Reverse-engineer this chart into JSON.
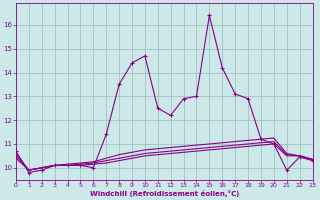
{
  "xlabel": "Windchill (Refroidissement éolien,°C)",
  "bg_color": "#cce8e8",
  "line_color": "#880088",
  "grid_color": "#99bbbb",
  "x": [
    0,
    1,
    2,
    3,
    4,
    5,
    6,
    7,
    8,
    9,
    10,
    11,
    12,
    13,
    14,
    15,
    16,
    17,
    18,
    19,
    20,
    21,
    22,
    23
  ],
  "y_main": [
    10.7,
    9.8,
    9.9,
    10.1,
    10.1,
    10.1,
    10.0,
    11.4,
    13.5,
    14.4,
    14.7,
    12.5,
    12.2,
    12.9,
    13.0,
    16.4,
    14.2,
    13.1,
    12.9,
    11.2,
    11.0,
    9.9,
    10.45,
    10.3
  ],
  "y_flat1": [
    10.4,
    9.9,
    10.0,
    10.1,
    10.1,
    10.1,
    10.15,
    10.2,
    10.3,
    10.4,
    10.5,
    10.55,
    10.6,
    10.65,
    10.7,
    10.75,
    10.8,
    10.85,
    10.9,
    10.95,
    11.0,
    10.5,
    10.5,
    10.35
  ],
  "y_flat2": [
    10.5,
    9.9,
    10.0,
    10.1,
    10.1,
    10.15,
    10.2,
    10.3,
    10.4,
    10.5,
    10.6,
    10.65,
    10.7,
    10.75,
    10.8,
    10.85,
    10.9,
    10.95,
    11.0,
    11.05,
    11.1,
    10.55,
    10.5,
    10.35
  ],
  "y_flat3": [
    10.6,
    9.9,
    10.0,
    10.1,
    10.15,
    10.2,
    10.25,
    10.4,
    10.55,
    10.65,
    10.75,
    10.8,
    10.85,
    10.9,
    10.95,
    11.0,
    11.05,
    11.1,
    11.15,
    11.2,
    11.25,
    10.6,
    10.5,
    10.35
  ],
  "ylim": [
    9.5,
    16.9
  ],
  "xlim": [
    0,
    23
  ],
  "yticks": [
    10,
    11,
    12,
    13,
    14,
    15,
    16
  ],
  "xticks": [
    0,
    1,
    2,
    3,
    4,
    5,
    6,
    7,
    8,
    9,
    10,
    11,
    12,
    13,
    14,
    15,
    16,
    17,
    18,
    19,
    20,
    21,
    22,
    23
  ]
}
